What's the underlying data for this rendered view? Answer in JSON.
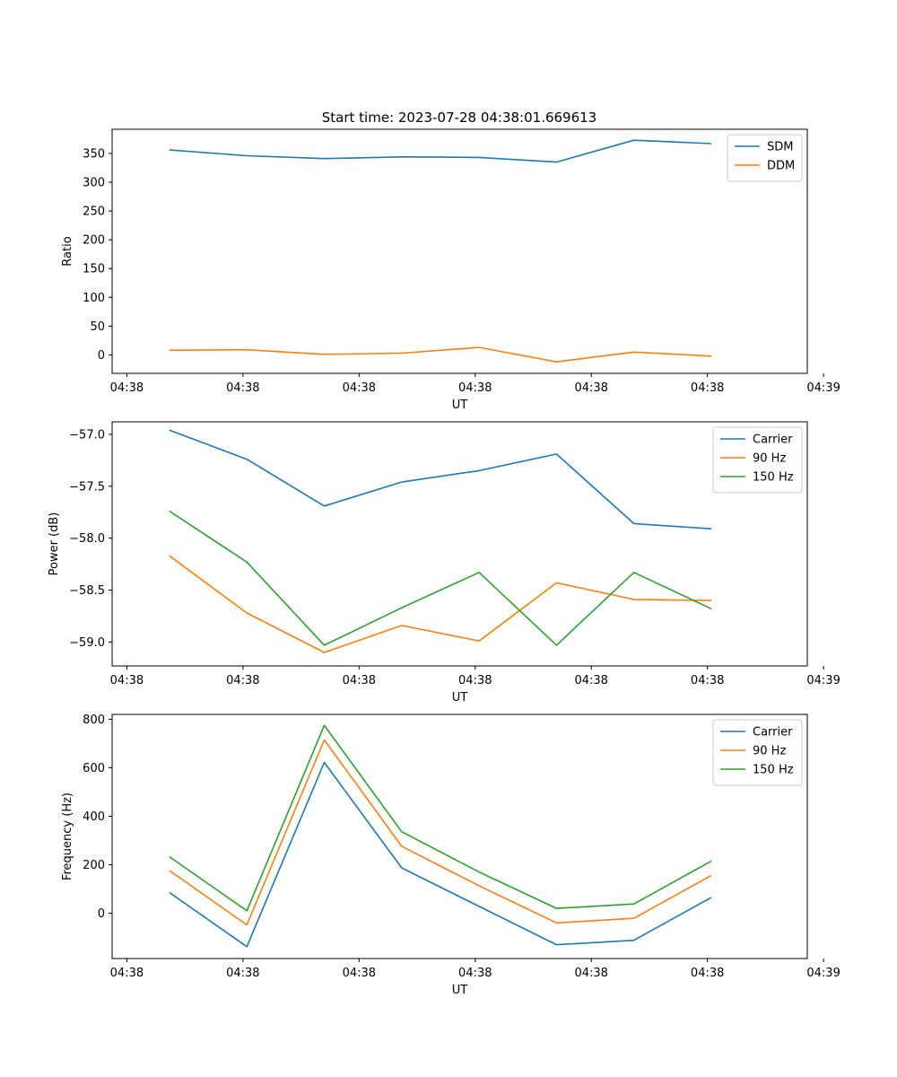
{
  "figure_title": "Start time: 2023-07-28 04:38:01.669613",
  "chart_data": [
    {
      "type": "line",
      "title": "Start time: 2023-07-28 04:38:01.669613",
      "xlabel": "UT",
      "ylabel": "Ratio",
      "x_tick_labels": [
        "04:38",
        "04:38",
        "04:38",
        "04:38",
        "04:38",
        "04:38",
        "04:39"
      ],
      "y_ticks": [
        0,
        50,
        100,
        150,
        200,
        250,
        300,
        350
      ],
      "y_tick_labels": [
        "0",
        "50",
        "100",
        "150",
        "200",
        "250",
        "300",
        "350"
      ],
      "ylim": [
        -32,
        392
      ],
      "x": [
        1,
        2,
        3,
        4,
        5,
        6,
        7,
        8
      ],
      "xlim": [
        0.26,
        9.24
      ],
      "x_tick_positions": [
        0.45,
        1.95,
        3.45,
        4.95,
        6.45,
        7.95,
        9.45
      ],
      "legend_loc": "upper right",
      "series": [
        {
          "name": "SDM",
          "color": "#1f77b4",
          "values": [
            356,
            346,
            341,
            344,
            343,
            335,
            373,
            367
          ]
        },
        {
          "name": "DDM",
          "color": "#ff7f0e",
          "values": [
            8,
            9,
            1,
            3,
            13,
            -12,
            5,
            -2
          ]
        }
      ]
    },
    {
      "type": "line",
      "xlabel": "UT",
      "ylabel": "Power (dB)",
      "x_tick_labels": [
        "04:38",
        "04:38",
        "04:38",
        "04:38",
        "04:38",
        "04:38",
        "04:39"
      ],
      "y_ticks": [
        -59.0,
        -58.5,
        -58.0,
        -57.5,
        -57.0
      ],
      "y_tick_labels": [
        "−59.0",
        "−58.5",
        "−58.0",
        "−57.5",
        "−57.0"
      ],
      "ylim": [
        -59.23,
        -56.88
      ],
      "x": [
        1,
        2,
        3,
        4,
        5,
        6,
        7,
        8
      ],
      "xlim": [
        0.26,
        9.24
      ],
      "x_tick_positions": [
        0.45,
        1.95,
        3.45,
        4.95,
        6.45,
        7.95,
        9.45
      ],
      "legend_loc": "upper right",
      "series": [
        {
          "name": "Carrier",
          "color": "#1f77b4",
          "values": [
            -56.96,
            -57.24,
            -57.69,
            -57.46,
            -57.35,
            -57.19,
            -57.86,
            -57.91
          ]
        },
        {
          "name": "90 Hz",
          "color": "#ff7f0e",
          "values": [
            -58.17,
            -58.72,
            -59.1,
            -58.84,
            -58.99,
            -58.43,
            -58.59,
            -58.6
          ]
        },
        {
          "name": "150 Hz",
          "color": "#2ca02c",
          "values": [
            -57.74,
            -58.23,
            -59.03,
            -58.67,
            -58.33,
            -59.03,
            -58.33,
            -58.68
          ]
        }
      ]
    },
    {
      "type": "line",
      "xlabel": "UT",
      "ylabel": "Frequency (Hz)",
      "x_tick_labels": [
        "04:38",
        "04:38",
        "04:38",
        "04:38",
        "04:38",
        "04:38",
        "04:39"
      ],
      "y_ticks": [
        0,
        200,
        400,
        600,
        800
      ],
      "y_tick_labels": [
        "0",
        "200",
        "400",
        "600",
        "800"
      ],
      "ylim": [
        -187,
        820
      ],
      "x": [
        1,
        2,
        3,
        4,
        5,
        6,
        7,
        8
      ],
      "xlim": [
        0.26,
        9.24
      ],
      "x_tick_positions": [
        0.45,
        1.95,
        3.45,
        4.95,
        6.45,
        7.95,
        9.45
      ],
      "legend_loc": "upper right",
      "series": [
        {
          "name": "Carrier",
          "color": "#1f77b4",
          "values": [
            85,
            -138,
            622,
            187,
            28,
            -130,
            -112,
            65
          ]
        },
        {
          "name": "90 Hz",
          "color": "#ff7f0e",
          "values": [
            176,
            -48,
            715,
            276,
            113,
            -40,
            -21,
            156
          ]
        },
        {
          "name": "150 Hz",
          "color": "#2ca02c",
          "values": [
            233,
            10,
            775,
            336,
            170,
            20,
            38,
            215
          ]
        }
      ]
    }
  ]
}
